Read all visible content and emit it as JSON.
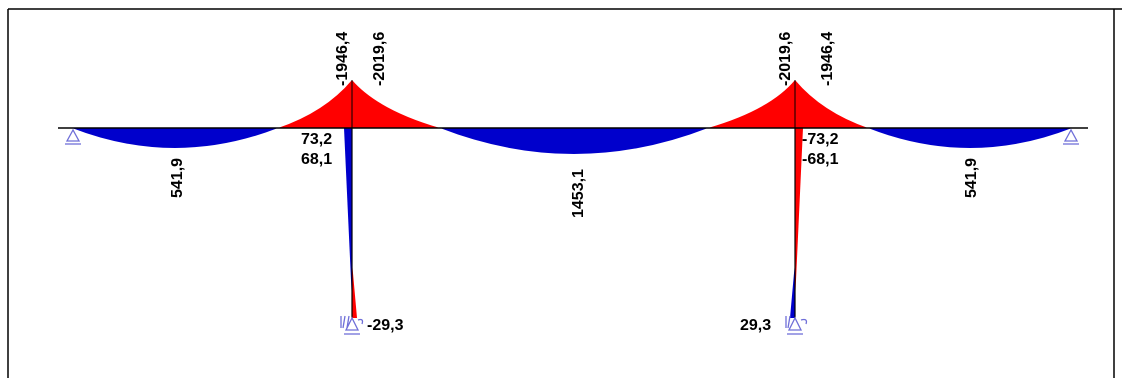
{
  "colors": {
    "negative_fill": "#ff0000",
    "positive_fill": "#0000cc",
    "support": "#6f6fd8",
    "line": "#000000",
    "frame": "#000000"
  },
  "labels": {
    "span1_mid": "541,9",
    "support1_left": "-1946,4",
    "support1_right": "-2019,6",
    "col1_top_a": "73,2",
    "col1_top_b": "68,1",
    "span2_mid": "1453,1",
    "support2_left": "-2019,6",
    "support2_right": "-1946,4",
    "col2_top_a": "-73,2",
    "col2_top_b": "-68,1",
    "span3_mid": "541,9",
    "col1_base": "-29,3",
    "col2_base": "29,3"
  },
  "icons": {
    "pin_support": "triangle-pin-support-icon",
    "fixed_support": "fixed-spring-support-icon"
  }
}
